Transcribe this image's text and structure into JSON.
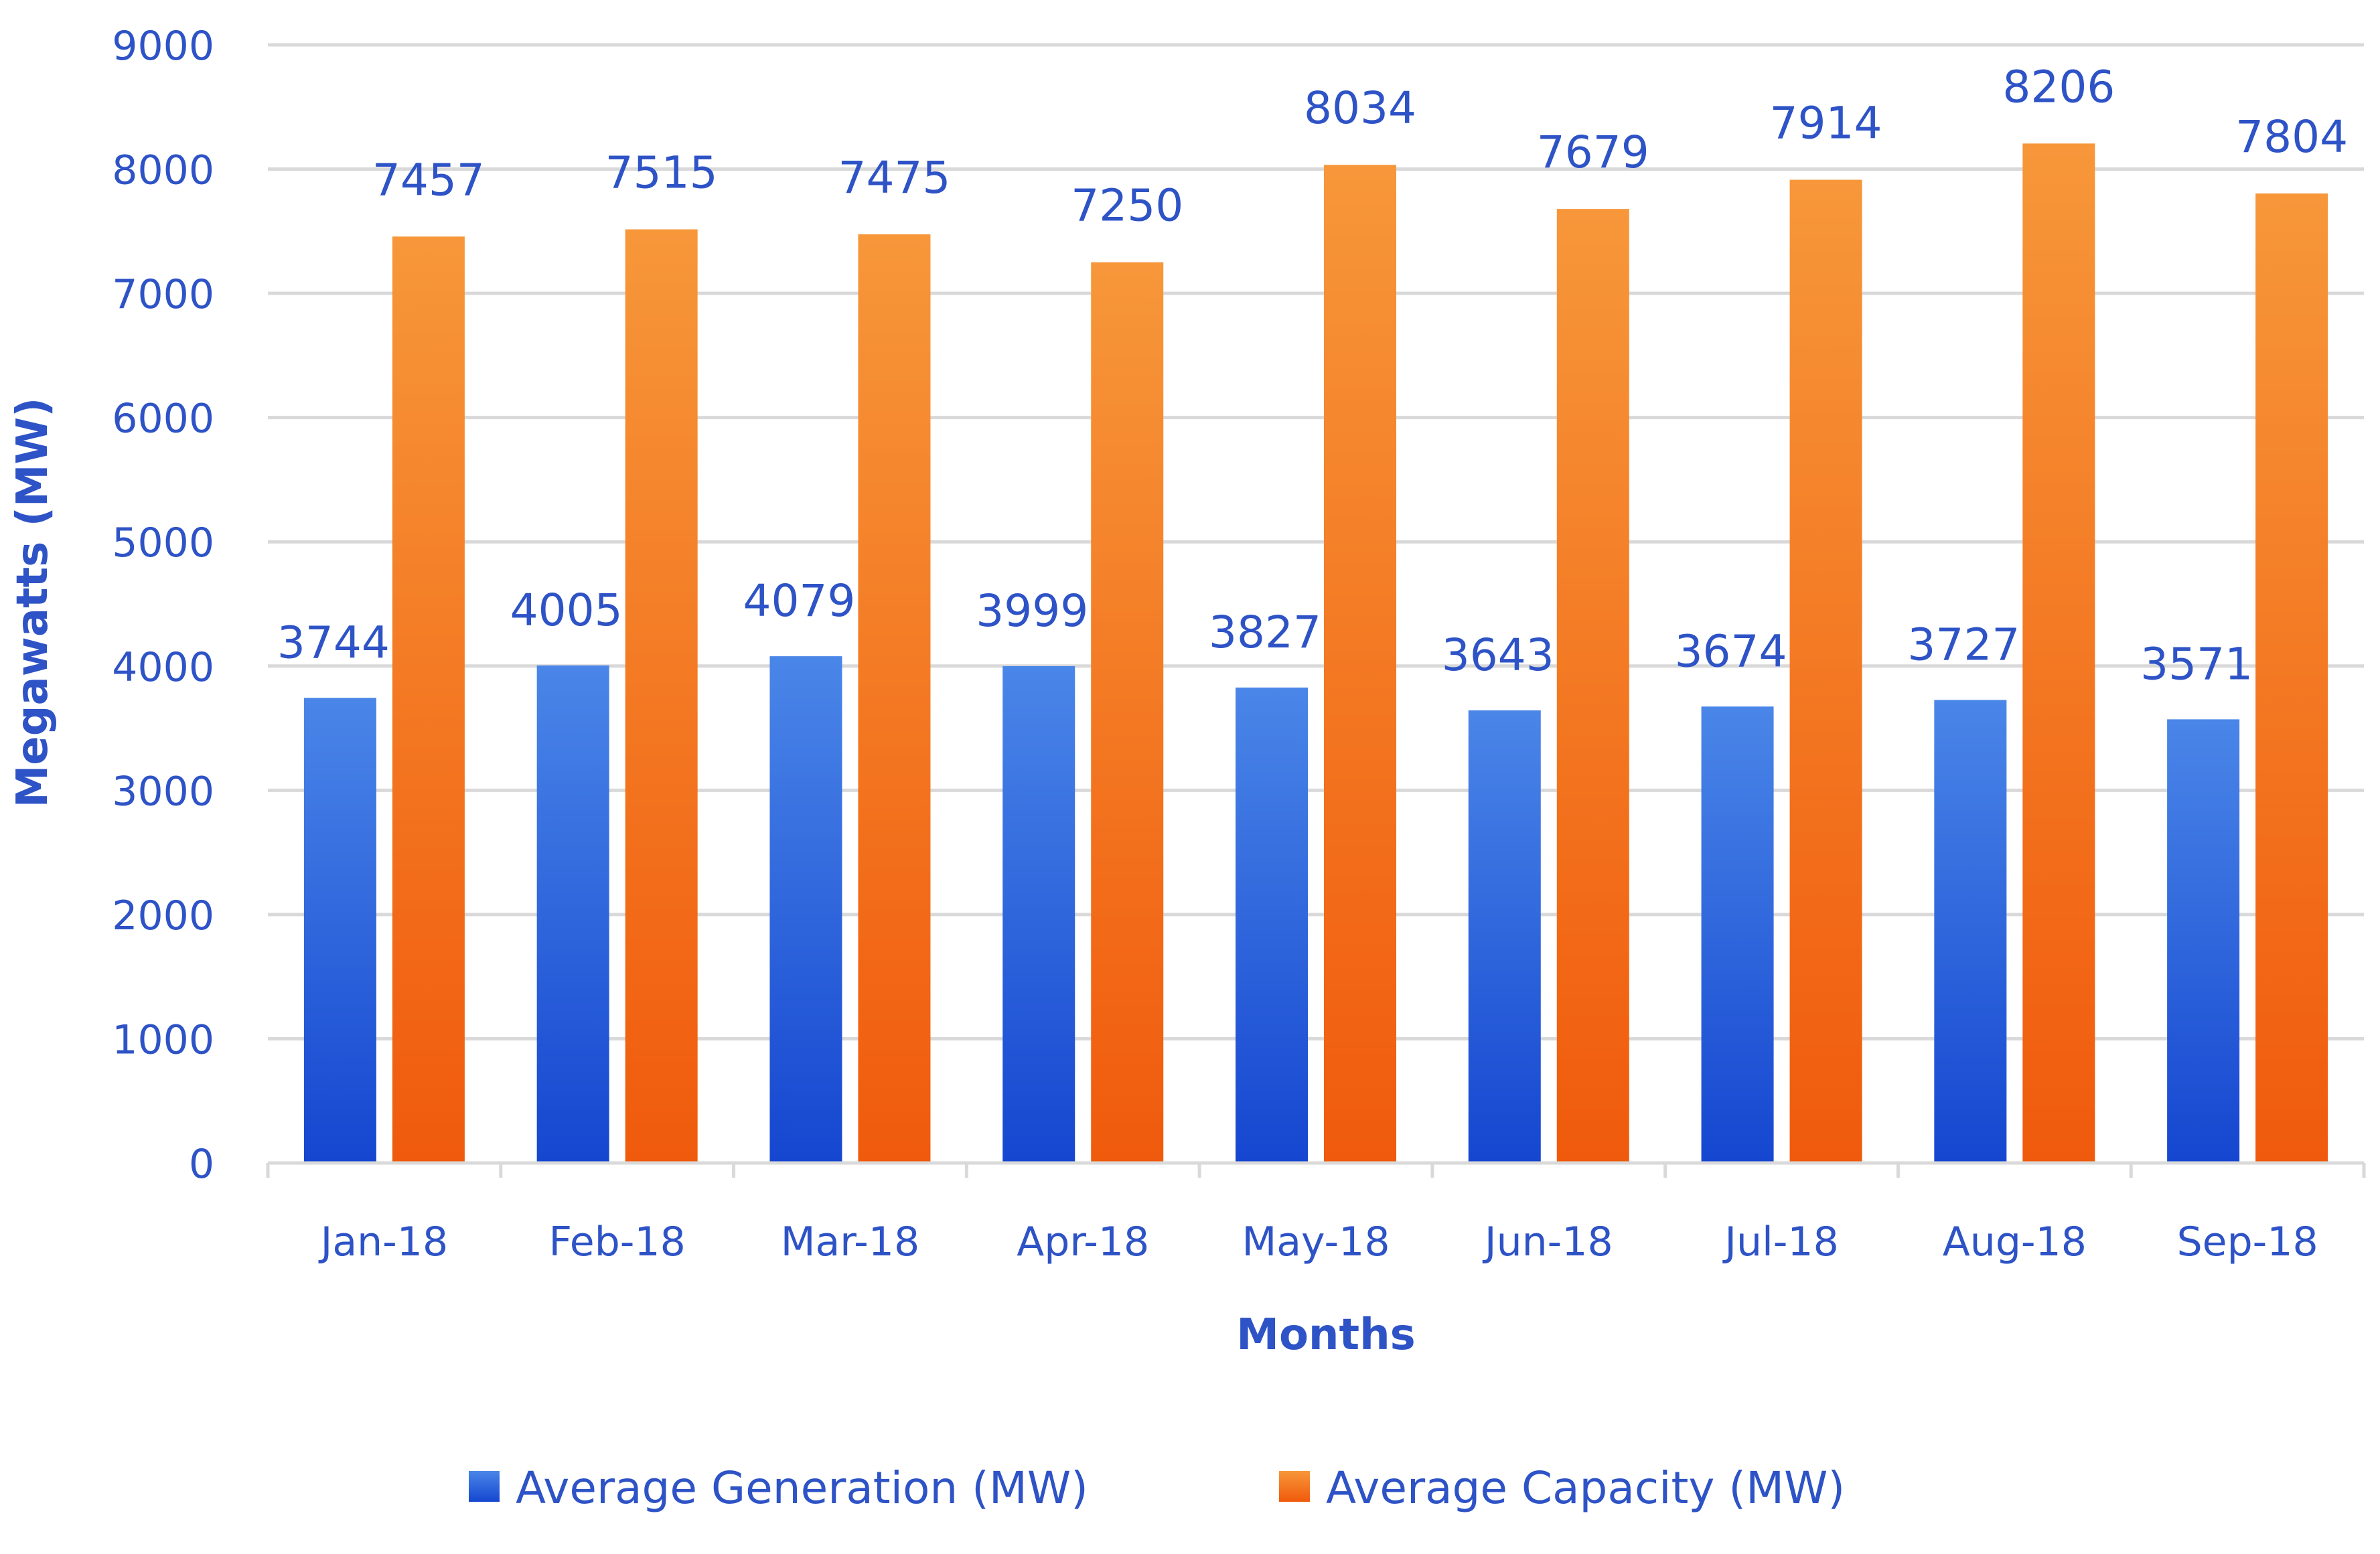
{
  "chart_data": {
    "type": "bar",
    "title": "",
    "xlabel": "Months",
    "ylabel": "Megawatts (MW)",
    "ylim": [
      0,
      9000
    ],
    "yticks": [
      0,
      1000,
      2000,
      3000,
      4000,
      5000,
      6000,
      7000,
      8000,
      9000
    ],
    "grid": true,
    "legend_position": "bottom",
    "categories": [
      "Jan-18",
      "Feb-18",
      "Mar-18",
      "Apr-18",
      "May-18",
      "Jun-18",
      "Jul-18",
      "Aug-18",
      "Sep-18"
    ],
    "series": [
      {
        "name": "Average Generation (MW)",
        "color": "#2f63de",
        "values": [
          3744,
          4005,
          4079,
          3999,
          3827,
          3643,
          3674,
          3727,
          3571
        ]
      },
      {
        "name": "Average Capacity (MW)",
        "color": "#f57c22",
        "values": [
          7457,
          7515,
          7475,
          7250,
          8034,
          7679,
          7914,
          8206,
          7804
        ]
      }
    ]
  }
}
